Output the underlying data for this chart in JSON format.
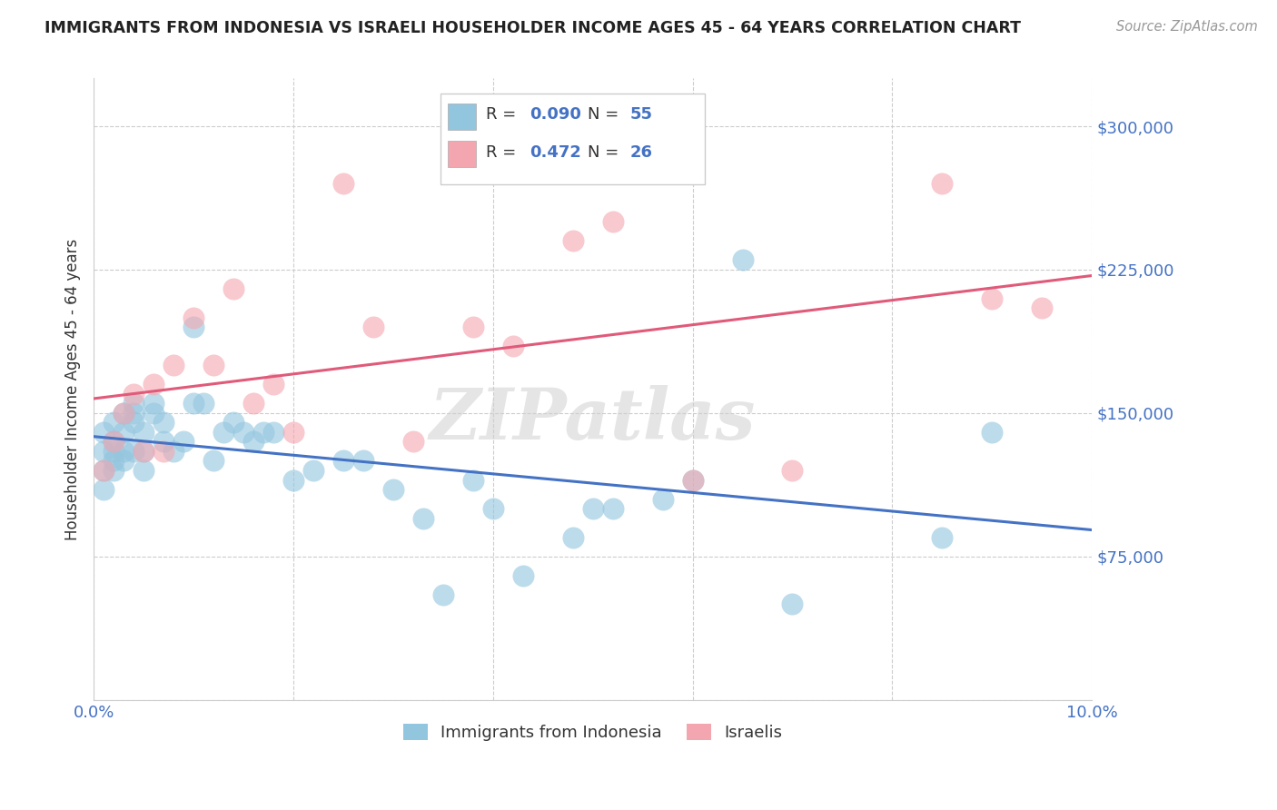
{
  "title": "IMMIGRANTS FROM INDONESIA VS ISRAELI HOUSEHOLDER INCOME AGES 45 - 64 YEARS CORRELATION CHART",
  "source": "Source: ZipAtlas.com",
  "ylabel": "Householder Income Ages 45 - 64 years",
  "xlim": [
    0.0,
    0.1
  ],
  "ylim": [
    0,
    325000
  ],
  "yticks": [
    0,
    75000,
    150000,
    225000,
    300000
  ],
  "ytick_labels": [
    "",
    "$75,000",
    "$150,000",
    "$225,000",
    "$300,000"
  ],
  "xticks": [
    0.0,
    0.02,
    0.04,
    0.06,
    0.08,
    0.1
  ],
  "xtick_labels": [
    "0.0%",
    "",
    "",
    "",
    "",
    "10.0%"
  ],
  "legend_label1": "Immigrants from Indonesia",
  "legend_label2": "Israelis",
  "blue_color": "#92c5de",
  "pink_color": "#f4a6b0",
  "blue_line_color": "#4472C4",
  "pink_line_color": "#e05a7a",
  "legend_r_color": "#4472C4",
  "legend_n_color": "#4472C4",
  "axis_tick_color": "#4472C4",
  "watermark": "ZIPatlas",
  "blue_x": [
    0.001,
    0.001,
    0.001,
    0.001,
    0.002,
    0.002,
    0.002,
    0.002,
    0.002,
    0.003,
    0.003,
    0.003,
    0.003,
    0.004,
    0.004,
    0.004,
    0.004,
    0.005,
    0.005,
    0.005,
    0.006,
    0.006,
    0.007,
    0.007,
    0.008,
    0.009,
    0.01,
    0.01,
    0.011,
    0.012,
    0.013,
    0.014,
    0.015,
    0.016,
    0.017,
    0.018,
    0.02,
    0.022,
    0.025,
    0.027,
    0.03,
    0.033,
    0.035,
    0.038,
    0.04,
    0.043,
    0.048,
    0.05,
    0.052,
    0.057,
    0.06,
    0.065,
    0.07,
    0.085,
    0.09
  ],
  "blue_y": [
    130000,
    120000,
    140000,
    110000,
    125000,
    130000,
    120000,
    135000,
    145000,
    140000,
    125000,
    130000,
    150000,
    145000,
    150000,
    155000,
    130000,
    140000,
    130000,
    120000,
    150000,
    155000,
    135000,
    145000,
    130000,
    135000,
    155000,
    195000,
    155000,
    125000,
    140000,
    145000,
    140000,
    135000,
    140000,
    140000,
    115000,
    120000,
    125000,
    125000,
    110000,
    95000,
    55000,
    115000,
    100000,
    65000,
    85000,
    100000,
    100000,
    105000,
    115000,
    230000,
    50000,
    85000,
    140000
  ],
  "pink_x": [
    0.001,
    0.002,
    0.003,
    0.004,
    0.005,
    0.006,
    0.007,
    0.008,
    0.01,
    0.012,
    0.014,
    0.016,
    0.018,
    0.02,
    0.025,
    0.028,
    0.032,
    0.038,
    0.042,
    0.048,
    0.052,
    0.06,
    0.07,
    0.085,
    0.09,
    0.095
  ],
  "pink_y": [
    120000,
    135000,
    150000,
    160000,
    130000,
    165000,
    130000,
    175000,
    200000,
    175000,
    215000,
    155000,
    165000,
    140000,
    270000,
    195000,
    135000,
    195000,
    185000,
    240000,
    250000,
    115000,
    120000,
    270000,
    210000,
    205000
  ]
}
